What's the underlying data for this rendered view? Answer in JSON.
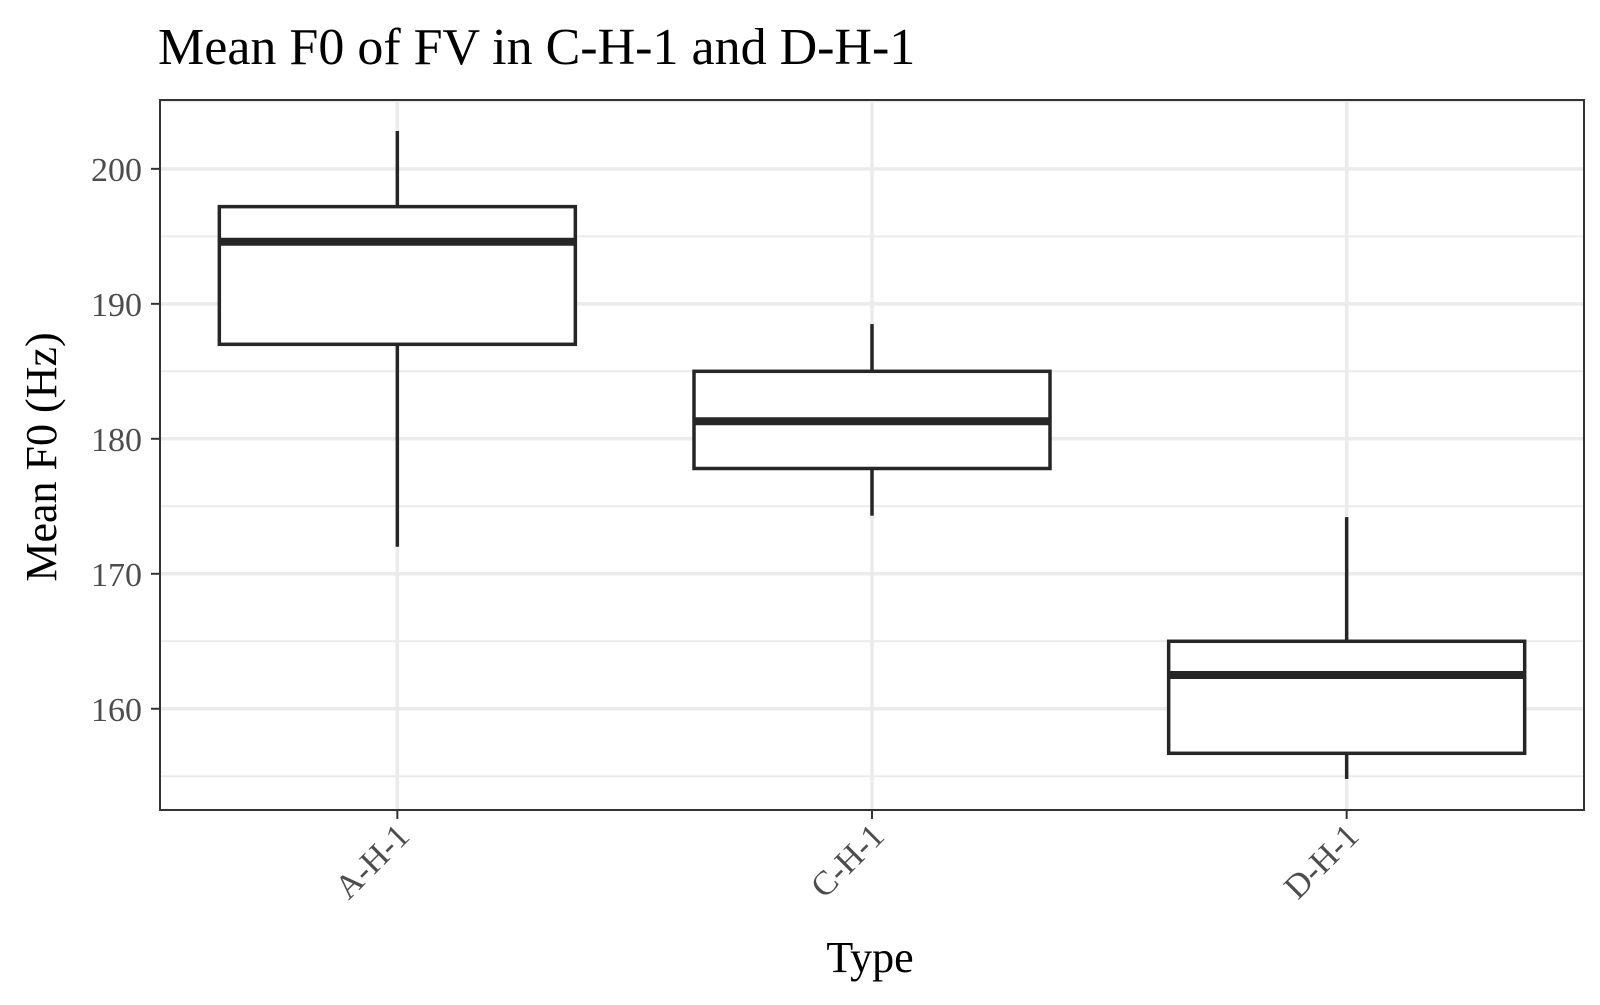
{
  "chart_data": {
    "type": "boxplot",
    "title": "Mean F0 of FV in C-H-1 and D-H-1",
    "xlabel": "Type",
    "ylabel": "Mean F0 (Hz)",
    "categories": [
      "A-H-1",
      "C-H-1",
      "D-H-1"
    ],
    "boxes": [
      {
        "category": "A-H-1",
        "whisker_low": 172.0,
        "q1": 187.0,
        "median": 194.6,
        "q3": 197.2,
        "whisker_high": 202.8
      },
      {
        "category": "C-H-1",
        "whisker_low": 174.3,
        "q1": 177.8,
        "median": 181.3,
        "q3": 185.0,
        "whisker_high": 188.5
      },
      {
        "category": "D-H-1",
        "whisker_low": 154.8,
        "q1": 156.7,
        "median": 162.5,
        "q3": 165.0,
        "whisker_high": 174.2
      }
    ],
    "ylim": [
      152.5,
      205.1
    ],
    "yticks": [
      160,
      170,
      180,
      190,
      200
    ],
    "grid": true,
    "legend": "none",
    "colors": {
      "box_stroke": "#262626",
      "box_fill": "#ffffff",
      "grid": "#ebebeb",
      "panel_border": "#333333",
      "tick_label": "#4d4d4d"
    }
  }
}
